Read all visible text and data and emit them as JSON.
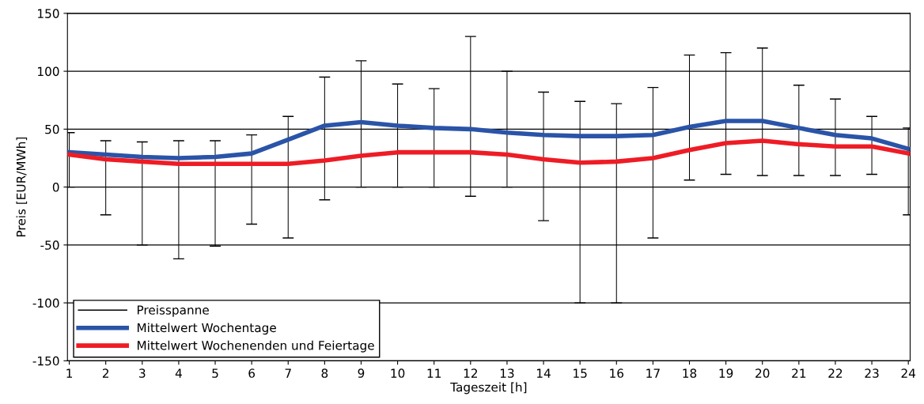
{
  "chart_data": {
    "type": "line",
    "xlabel": "Tageszeit [h]",
    "ylabel": "Preis [EUR/MWh]",
    "categories": [
      "1",
      "2",
      "3",
      "4",
      "5",
      "6",
      "7",
      "8",
      "9",
      "10",
      "11",
      "12",
      "13",
      "14",
      "15",
      "16",
      "17",
      "18",
      "19",
      "20",
      "21",
      "22",
      "23",
      "24"
    ],
    "ylim": [
      -150,
      150
    ],
    "yticks": [
      -150,
      -100,
      -50,
      0,
      50,
      100,
      150
    ],
    "grid": "y",
    "legend": "bottom left",
    "marker": "none",
    "series": [
      {
        "name": "Preisspanne",
        "type": "bar",
        "color": "#000000",
        "base": [
          0,
          -24,
          -50,
          -62,
          -51,
          -32,
          -44,
          -11,
          0,
          0,
          0,
          -8,
          0,
          -29,
          -100,
          -100,
          -44,
          6,
          11,
          10,
          10,
          10,
          11,
          -24
        ],
        "values": [
          47,
          64,
          89,
          102,
          91,
          77,
          105,
          106,
          109,
          89,
          85,
          138,
          100,
          111,
          174,
          172,
          130,
          108,
          105,
          110,
          78,
          66,
          50,
          75
        ]
      },
      {
        "name": "Mittelwert Wochentage",
        "color": "#2a54a8",
        "values": [
          30,
          28,
          26,
          25,
          26,
          29,
          41,
          53,
          56,
          53,
          51,
          50,
          47,
          45,
          44,
          44,
          45,
          52,
          57,
          57,
          51,
          45,
          42,
          33
        ]
      },
      {
        "name": "Mittelwert Wochenenden und Feiertage",
        "color": "#ee1c25",
        "values": [
          28,
          24,
          22,
          20,
          20,
          20,
          20,
          23,
          27,
          30,
          30,
          30,
          28,
          24,
          21,
          22,
          25,
          32,
          38,
          40,
          37,
          35,
          35,
          29
        ]
      }
    ]
  }
}
